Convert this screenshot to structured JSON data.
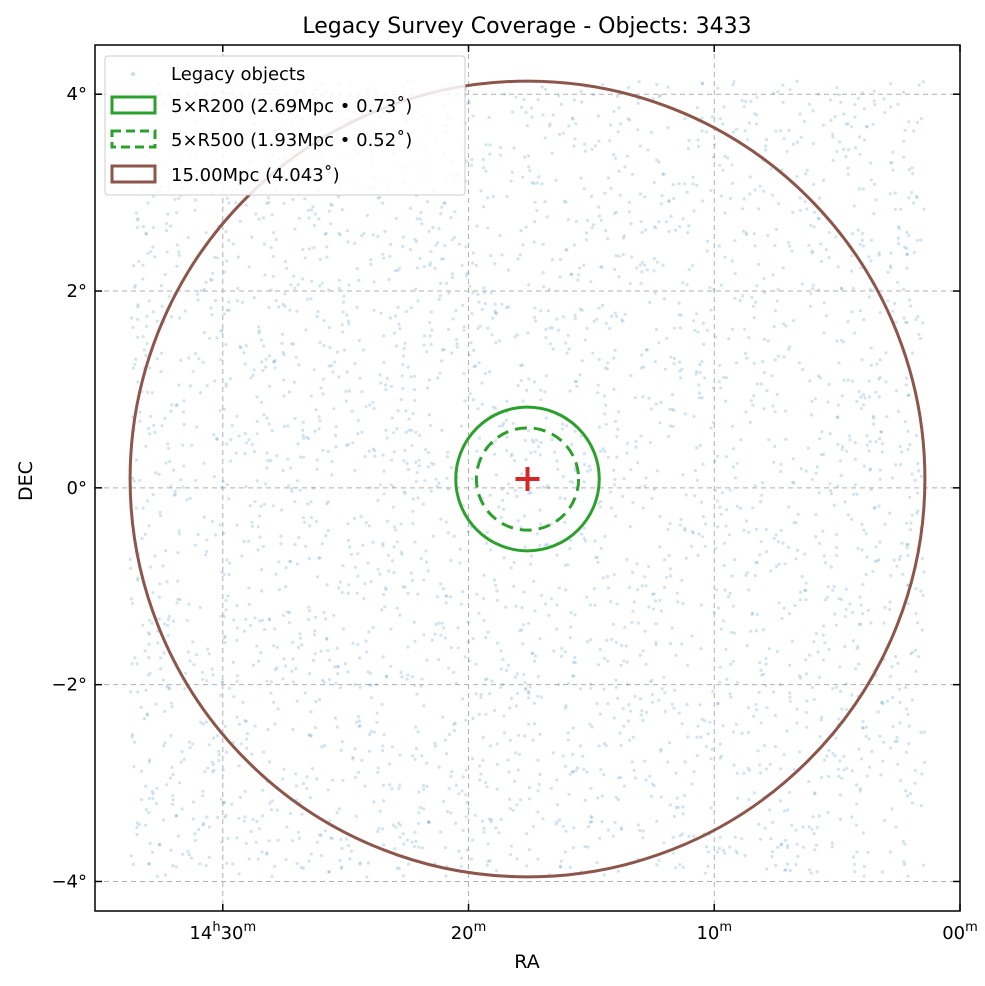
{
  "chart_data": {
    "type": "scatter",
    "title": "Legacy Survey Coverage - Objects: 3433",
    "xlabel": "RA",
    "ylabel": "DEC",
    "object_count": 3433,
    "xlim_deg": [
      218.8,
      210.0
    ],
    "ylim_deg": [
      -4.3,
      4.5
    ],
    "grid": true,
    "legend_placement": "top-left",
    "x_ticks": [
      {
        "value": 217.5,
        "label_main": "14",
        "sup1": "h",
        "label_mid": "30",
        "sup2": "m"
      },
      {
        "value": 215.0,
        "label_main": "20",
        "sup1": "m",
        "label_mid": "",
        "sup2": ""
      },
      {
        "value": 212.5,
        "label_main": "10",
        "sup1": "m",
        "label_mid": "",
        "sup2": ""
      },
      {
        "value": 210.0,
        "label_main": "00",
        "sup1": "m",
        "label_mid": "",
        "sup2": ""
      }
    ],
    "y_ticks": [
      {
        "value": 4,
        "label": "4°"
      },
      {
        "value": 2,
        "label": "2°"
      },
      {
        "value": 0,
        "label": "0°"
      },
      {
        "value": -2,
        "label": "−2°"
      },
      {
        "value": -4,
        "label": "−4°"
      }
    ],
    "center": {
      "ra": 214.4,
      "dec": 0.09
    },
    "circles": [
      {
        "name": "5×R200",
        "legend": "5×R200 (2.69Mpc • 0.73$^\\circ$)",
        "legend_text": "5×R200 (2.69Mpc • 0.73 ̊)",
        "radius_deg": 0.73,
        "color": "#2ca02c",
        "style": "solid"
      },
      {
        "name": "5×R500",
        "legend": "5×R500 (1.93Mpc • 0.52)",
        "legend_text": "5×R500 (1.93Mpc • 0.52 ̊)",
        "radius_deg": 0.52,
        "color": "#2ca02c",
        "style": "dashed"
      },
      {
        "name": "15.00Mpc",
        "legend": "15.00Mpc (4.043)",
        "legend_text": "15.00Mpc (4.043 ̊)",
        "radius_deg": 4.043,
        "color": "#8c564b",
        "style": "solid"
      }
    ],
    "scatter_series": {
      "name": "Legacy objects",
      "color": "#1f77b4",
      "alpha": 0.2
    },
    "center_marker": {
      "color": "#d62728",
      "shape": "plus"
    }
  },
  "legend": {
    "entries": [
      {
        "label": "Legacy objects"
      },
      {
        "label": "5×R200 (2.69Mpc • 0.73˚)"
      },
      {
        "label": "5×R500 (1.93Mpc • 0.52˚)"
      },
      {
        "label": "15.00Mpc (4.043˚)"
      }
    ]
  }
}
